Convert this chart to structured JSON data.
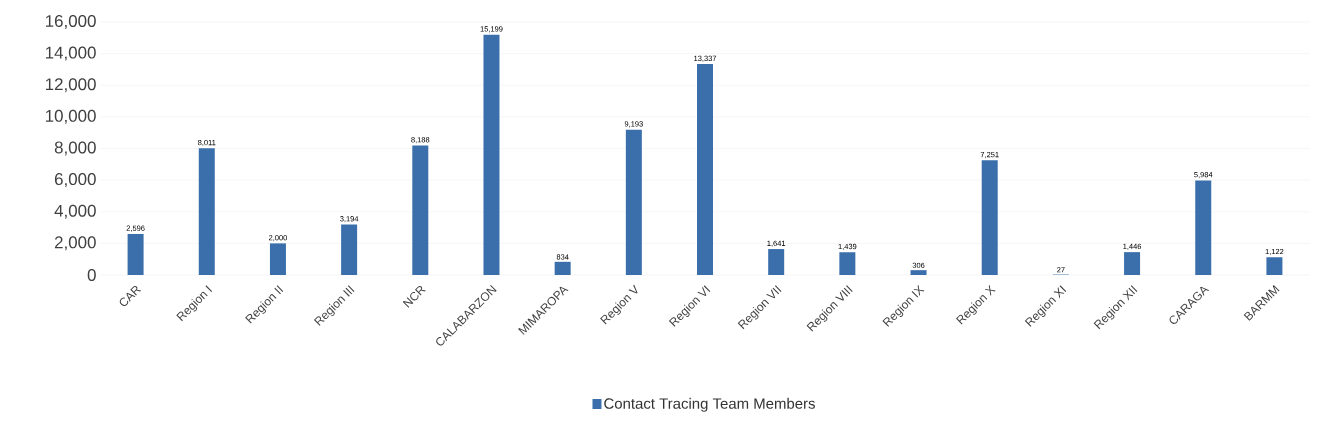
{
  "chart_data": {
    "type": "bar",
    "categories": [
      "CAR",
      "Region I",
      "Region II",
      "Region III",
      "NCR",
      "CALABARZON",
      "MIMAROPA",
      "Region V",
      "Region VI",
      "Region VII",
      "Region VIII",
      "Region IX",
      "Region X",
      "Region XI",
      "Region XII",
      "CARAGA",
      "BARMM"
    ],
    "series": [
      {
        "name": "Contact Tracing Team Members",
        "color": "#3a6fab",
        "values": [
          2596,
          8011,
          2000,
          3194,
          8188,
          15199,
          834,
          9193,
          13337,
          1641,
          1439,
          306,
          7251,
          27,
          1446,
          5984,
          1122
        ],
        "value_labels": [
          "2,596",
          "8,011",
          "2,000",
          "3,194",
          "8,188",
          "15,199",
          "834",
          "9,193",
          "13,337",
          "1,641",
          "1,439",
          "306",
          "7,251",
          "27",
          "1,446",
          "5,984",
          "1,122"
        ]
      }
    ],
    "ylim": [
      0,
      16000
    ],
    "yticks": [
      0,
      {
        "value": 2000,
        "label": "2,000"
      },
      {
        "value": 4000,
        "label": "4,000"
      },
      {
        "value": 6000,
        "label": "6,000"
      },
      {
        "value": 8000,
        "label": "8,000"
      },
      {
        "value": 10000,
        "label": "10,000"
      },
      {
        "value": 12000,
        "label": "12,000"
      },
      {
        "value": 14000,
        "label": "14,000"
      },
      {
        "value": 16000,
        "label": "16,000"
      }
    ],
    "grid": "y",
    "legend": "bottom"
  }
}
